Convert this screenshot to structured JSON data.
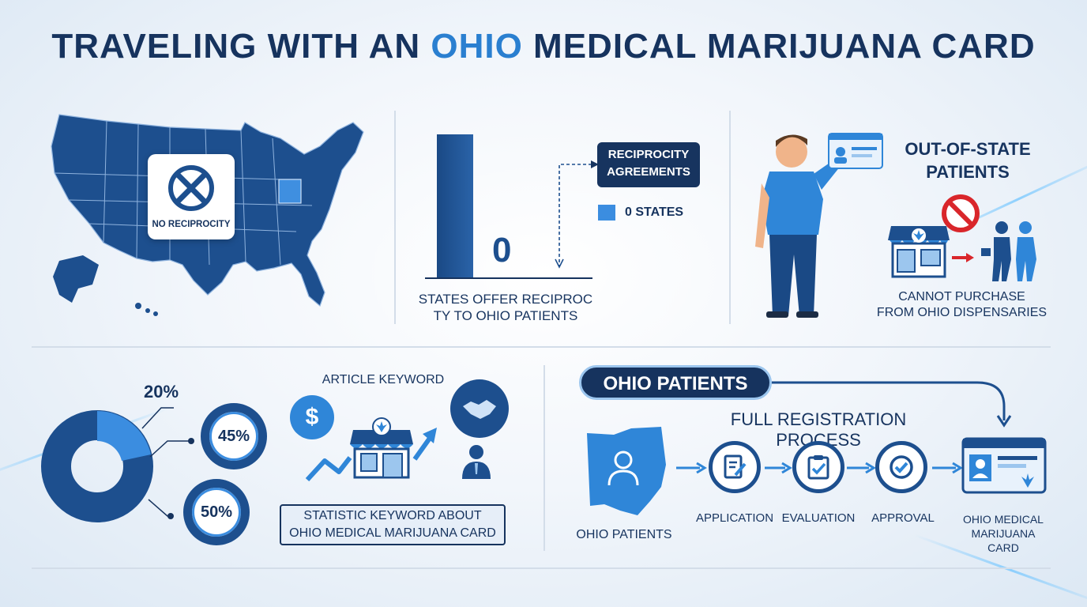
{
  "title": {
    "part1": "TRAVELING WITH AN ",
    "highlight": "OHIO",
    "part2": " MEDICAL MARIJUANA CARD"
  },
  "map": {
    "badge_label": "NO RECIPROCITY",
    "badge_icon": "x-circle-icon"
  },
  "bar_chart": {
    "value_label": "0",
    "callout": "RECIPROCITY AGREEMENTS",
    "legend": "0 STATES",
    "caption_line1": "STATES OFFER RECIPROC",
    "caption_line2": "TY TO OHIO PATIENTS"
  },
  "out_of_state": {
    "heading_line1": "OUT-OF-STATE",
    "heading_line2": "PATIENTS",
    "caption_line1": "CANNOT PURCHASE",
    "caption_line2": "FROM OHIO DISPENSARIES"
  },
  "stats": {
    "p1": "20%",
    "p2": "45%",
    "p3": "50%"
  },
  "keyword_panel": {
    "label": "ARTICLE KEYWORD",
    "caption_line1": "STATISTIC KEYWORD ABOUT",
    "caption_line2": "OHIO MEDICAL MARIJUANA CARD",
    "dollar": "$"
  },
  "process": {
    "pill": "OHIO PATIENTS",
    "heading": "FULL REGISTRATION PROCESS",
    "ohio_label": "OHIO PATIENTS",
    "steps": [
      "APPLICATION",
      "EVALUATION",
      "APPROVAL"
    ],
    "card_line1": "OHIO MEDICAL",
    "card_line2": "MARIJUANA",
    "card_line3": "CARD"
  },
  "colors": {
    "navy": "#16335e",
    "blue": "#1d4f8e",
    "accent": "#2a7fd0",
    "red": "#d9262b"
  }
}
